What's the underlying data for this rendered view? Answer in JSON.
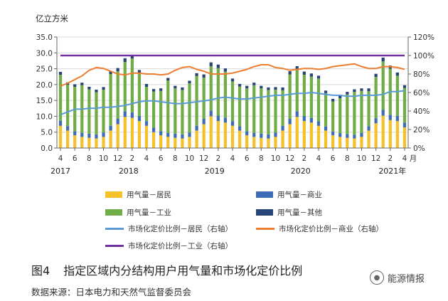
{
  "chart_data": {
    "type": "bar",
    "subtype": "stacked-bar-with-lines",
    "y_left_unit": "亿立方米",
    "y_left_range": [
      0,
      35
    ],
    "y_left_ticks": [
      "0.0",
      "5.0",
      "10.0",
      "15.0",
      "20.0",
      "25.0",
      "30.0",
      "35.0"
    ],
    "y_right_range": [
      0,
      120
    ],
    "y_right_ticks": [
      "0%",
      "20%",
      "40%",
      "60%",
      "80%",
      "100%",
      "120%"
    ],
    "months": [
      4,
      5,
      6,
      7,
      8,
      9,
      10,
      11,
      12,
      1,
      2,
      3,
      4,
      5,
      6,
      7,
      8,
      9,
      10,
      11,
      12,
      1,
      2,
      3,
      4,
      5,
      6,
      7,
      8,
      9,
      10,
      11,
      12,
      1,
      2,
      3,
      4,
      5,
      6,
      7,
      8,
      9,
      10,
      11,
      12,
      1,
      2,
      3,
      4
    ],
    "x_tick_labels": [
      "4",
      "6",
      "8",
      "10",
      "12",
      "2",
      "4",
      "6",
      "8",
      "10",
      "12",
      "2",
      "4",
      "6",
      "8",
      "10",
      "12",
      "2",
      "4",
      "6",
      "8",
      "10",
      "12",
      "2",
      "4"
    ],
    "x_tick_indices": [
      0,
      2,
      4,
      6,
      8,
      10,
      12,
      14,
      16,
      18,
      20,
      22,
      24,
      26,
      28,
      30,
      32,
      34,
      36,
      38,
      40,
      42,
      44,
      46,
      48
    ],
    "x_unit": "月",
    "year_labels": [
      {
        "label": "2017",
        "index": 0
      },
      {
        "label": "2018",
        "index": 9.5
      },
      {
        "label": "2019",
        "index": 21.5
      },
      {
        "label": "2020",
        "index": 33.5
      },
      {
        "label": "2021年",
        "index": 46.3
      }
    ],
    "series": [
      {
        "name": "用气量－居民",
        "axis": "left",
        "kind": "bar",
        "color": "#f5c12b",
        "values": [
          7.0,
          5.5,
          4.0,
          3.5,
          3.2,
          3.0,
          3.5,
          5.5,
          7.5,
          9.8,
          9.5,
          8.5,
          7.0,
          5.0,
          4.0,
          3.5,
          3.2,
          3.0,
          3.5,
          5.5,
          7.5,
          10.0,
          8.5,
          8.0,
          7.0,
          5.5,
          4.0,
          3.5,
          3.2,
          3.0,
          3.5,
          5.5,
          7.5,
          9.8,
          8.5,
          8.0,
          7.0,
          5.5,
          4.0,
          3.5,
          3.2,
          3.0,
          3.5,
          5.5,
          7.8,
          10.2,
          8.8,
          8.5,
          6.5
        ]
      },
      {
        "name": "用气量－商业",
        "axis": "left",
        "kind": "bar",
        "color": "#3e6db5",
        "values": [
          1.6,
          1.4,
          1.3,
          1.3,
          1.3,
          1.3,
          1.4,
          1.5,
          1.7,
          1.8,
          1.7,
          1.6,
          1.5,
          1.4,
          1.3,
          1.3,
          1.3,
          1.3,
          1.4,
          1.5,
          1.7,
          1.8,
          1.7,
          1.6,
          1.5,
          1.4,
          1.3,
          1.3,
          1.3,
          1.3,
          1.4,
          1.5,
          1.7,
          1.8,
          1.6,
          1.5,
          1.4,
          1.3,
          1.2,
          1.2,
          1.2,
          1.2,
          1.3,
          1.4,
          1.6,
          1.8,
          1.7,
          1.6,
          1.5
        ]
      },
      {
        "name": "用气量－工业",
        "axis": "left",
        "kind": "bar",
        "color": "#70ad47",
        "values": [
          14.5,
          13.0,
          14.0,
          15.0,
          14.0,
          13.3,
          13.5,
          16.3,
          15.0,
          15.5,
          17.0,
          13.5,
          10.8,
          11.4,
          12.7,
          16.5,
          14.3,
          14.0,
          15.5,
          15.7,
          13.0,
          14.0,
          15.0,
          14.5,
          12.5,
          12.5,
          13.5,
          15.0,
          14.3,
          14.0,
          13.5,
          11.2,
          14.0,
          13.0,
          13.0,
          13.0,
          13.5,
          10.5,
          9.5,
          11.0,
          12.5,
          13.5,
          13.2,
          11.0,
          13.0,
          15.3,
          14.5,
          12.7,
          10.9
        ]
      },
      {
        "name": "用气量－其他",
        "axis": "left",
        "kind": "bar",
        "color": "#264478",
        "values": [
          0.9,
          0.8,
          0.8,
          0.8,
          0.8,
          0.8,
          0.8,
          0.9,
          1.0,
          1.2,
          1.1,
          1.0,
          0.9,
          0.8,
          0.8,
          0.8,
          0.8,
          0.8,
          0.8,
          0.9,
          1.0,
          1.2,
          1.1,
          1.0,
          0.9,
          0.8,
          0.8,
          0.8,
          0.8,
          0.8,
          0.8,
          0.9,
          1.0,
          1.2,
          1.0,
          1.0,
          0.9,
          0.8,
          0.8,
          0.8,
          0.8,
          0.8,
          0.8,
          0.9,
          1.0,
          1.2,
          1.0,
          1.0,
          0.9
        ]
      },
      {
        "name": "市场化定价比例－居民（右轴）",
        "axis": "right",
        "kind": "line",
        "color": "#5b9bd5",
        "values": [
          36,
          39,
          42,
          42,
          43,
          43,
          44,
          44,
          45,
          46,
          48,
          50,
          51,
          51,
          50,
          49,
          48,
          48,
          49,
          50,
          51,
          52,
          54,
          55,
          54,
          53,
          53,
          54,
          55,
          56,
          57,
          57,
          58,
          59,
          59,
          60,
          59,
          58,
          57,
          57,
          56,
          56,
          57,
          57,
          57,
          58,
          61,
          61,
          62
        ]
      },
      {
        "name": "市场化定价比例－商业（右轴）",
        "axis": "right",
        "kind": "line",
        "color": "#ed7d31",
        "values": [
          67,
          70,
          74,
          78,
          84,
          87,
          86,
          83,
          80,
          79,
          81,
          81,
          80,
          80,
          79,
          80,
          84,
          87,
          88,
          85,
          83,
          80,
          80,
          80,
          81,
          83,
          85,
          88,
          90,
          90,
          87,
          86,
          84,
          85,
          86,
          86,
          85,
          86,
          88,
          89,
          90,
          91,
          88,
          86,
          86,
          88,
          88,
          87,
          85
        ]
      },
      {
        "name": "市场化定价比例－工业（右轴）",
        "axis": "right",
        "kind": "line",
        "color": "#7030a0",
        "values": [
          100,
          100,
          100,
          100,
          100,
          100,
          100,
          100,
          100,
          100,
          100,
          100,
          100,
          100,
          100,
          100,
          100,
          100,
          100,
          100,
          100,
          100,
          100,
          100,
          100,
          100,
          100,
          100,
          100,
          100,
          100,
          100,
          100,
          100,
          100,
          100,
          100,
          100,
          100,
          100,
          100,
          100,
          100,
          100,
          100,
          100,
          100,
          100,
          100
        ]
      }
    ]
  },
  "caption": {
    "figure_number": "图4",
    "title": "指定区域内分结构用户用气量和市场化定价比例"
  },
  "source": "数据来源：日本电力和天然气监督委员会",
  "watermark": "能源情报"
}
